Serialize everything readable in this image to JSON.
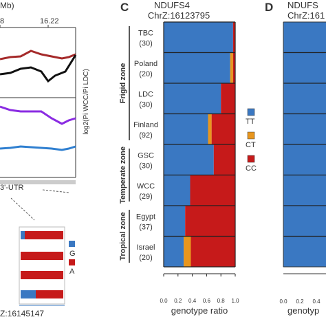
{
  "left_panel": {
    "header_fragment": "Mb)",
    "x_ticks": [
      "8",
      "16.22"
    ],
    "y_axis_label": "log2(Pi WCC/Pi LDC)",
    "utr_label": "3'-UTR",
    "snp_locus": "Z:16145147",
    "snp_legend": [
      {
        "label": "G",
        "color": "#3a78c2"
      },
      {
        "label": "A",
        "color": "#c61a1a"
      }
    ],
    "line_colors": [
      "#a52a2a",
      "#111111",
      "#8a2be2",
      "#2f7fd0"
    ]
  },
  "panel_c": {
    "letter": "C",
    "gene": "NDUFS4",
    "locus": "ChrZ:16123795",
    "xlabel": "genotype ratio",
    "x_ticks": [
      "0.0",
      "0.2",
      "0.4",
      "0.6",
      "0.8",
      "1.0"
    ],
    "legend": [
      {
        "label": "TT",
        "color": "#3a78c2"
      },
      {
        "label": "CT",
        "color": "#e8961e"
      },
      {
        "label": "CC",
        "color": "#c61a1a"
      }
    ],
    "zones": [
      "Frigid zone",
      "Temperate zone",
      "Tropical zone"
    ]
  },
  "panel_d": {
    "letter": "D",
    "gene_fragment": "NDUFS",
    "locus_fragment": "ChrZ:161",
    "xlabel_fragment": "genotyp",
    "x_ticks": [
      "0.0",
      "0.2",
      "0.4"
    ]
  },
  "chart_data": {
    "type": "bar",
    "stacked": true,
    "orientation": "horizontal",
    "title": "NDUFS4 ChrZ:16123795",
    "xlabel": "genotype ratio",
    "xlim": [
      0,
      1
    ],
    "categories": [
      "TBC (30)",
      "Poland (20)",
      "LDC (30)",
      "Finland (92)",
      "GSC (30)",
      "WCC (29)",
      "Egypt (37)",
      "Israel (20)"
    ],
    "series": [
      {
        "name": "TT",
        "color": "#3a78c2",
        "values": [
          0.97,
          0.93,
          0.8,
          0.62,
          0.7,
          0.37,
          0.3,
          0.28
        ]
      },
      {
        "name": "CT",
        "color": "#e8961e",
        "values": [
          0.0,
          0.04,
          0.0,
          0.05,
          0.0,
          0.0,
          0.0,
          0.1
        ]
      },
      {
        "name": "CC",
        "color": "#c61a1a",
        "values": [
          0.03,
          0.03,
          0.2,
          0.33,
          0.3,
          0.63,
          0.7,
          0.62
        ]
      }
    ],
    "zone_groups": [
      {
        "name": "Frigid zone",
        "members": [
          "TBC (30)",
          "Poland (20)",
          "LDC (30)",
          "Finland (92)"
        ]
      },
      {
        "name": "Temperate zone",
        "members": [
          "GSC (30)",
          "WCC (29)"
        ]
      },
      {
        "name": "Tropical zone",
        "members": [
          "Egypt (37)",
          "Israel (20)"
        ]
      }
    ],
    "legend_position": "right",
    "populations": [
      {
        "name": "TBC",
        "n": "(30)"
      },
      {
        "name": "Poland",
        "n": "(20)"
      },
      {
        "name": "LDC",
        "n": "(30)"
      },
      {
        "name": "Finland",
        "n": "(92)"
      },
      {
        "name": "GSC",
        "n": "(30)"
      },
      {
        "name": "WCC",
        "n": "(29)"
      },
      {
        "name": "Egypt",
        "n": "(37)"
      },
      {
        "name": "Israel",
        "n": "(20)"
      }
    ]
  }
}
